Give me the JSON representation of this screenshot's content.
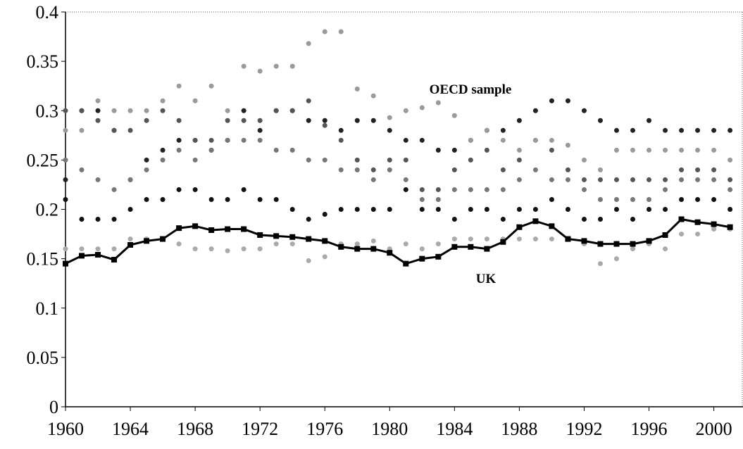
{
  "chart_data": {
    "type": "line",
    "x": [
      1960,
      1961,
      1962,
      1963,
      1964,
      1965,
      1966,
      1967,
      1968,
      1969,
      1970,
      1971,
      1972,
      1973,
      1974,
      1975,
      1976,
      1977,
      1978,
      1979,
      1980,
      1981,
      1982,
      1983,
      1984,
      1985,
      1986,
      1987,
      1988,
      1989,
      1990,
      1991,
      1992,
      1993,
      1994,
      1995,
      1996,
      1997,
      1998,
      1999,
      2000,
      2001
    ],
    "xlim": [
      1960,
      2001.8
    ],
    "xticks": [
      1960,
      1964,
      1968,
      1972,
      1976,
      1980,
      1984,
      1988,
      1992,
      1996,
      2000
    ],
    "ylim": [
      0,
      0.4
    ],
    "yticks": [
      0,
      0.05,
      0.1,
      0.15,
      0.2,
      0.25,
      0.3,
      0.35,
      0.4
    ],
    "annotations": [
      "OECD sample",
      "UK"
    ],
    "series": [
      {
        "marker": "point",
        "color": "#222222",
        "values": [
          0.23,
          0.3,
          0.3,
          0.28,
          0.23,
          0.25,
          0.26,
          0.27,
          0.27,
          0.26,
          0.27,
          0.3,
          0.28,
          0.3,
          0.3,
          0.29,
          0.29,
          0.28,
          0.29,
          0.29,
          0.28,
          0.27,
          0.27,
          0.26,
          0.26,
          0.27,
          0.28,
          0.28,
          0.29,
          0.3,
          0.31,
          0.31,
          0.3,
          0.29,
          0.28,
          0.28,
          0.29,
          0.28,
          0.28,
          0.28,
          0.28,
          0.28
        ]
      },
      {
        "marker": "point",
        "color": "#555555",
        "values": [
          0.3,
          0.3,
          0.29,
          0.28,
          0.28,
          0.29,
          0.3,
          0.29,
          0.27,
          0.27,
          0.29,
          0.29,
          0.29,
          0.3,
          0.3,
          0.31,
          0.285,
          0.27,
          0.25,
          0.24,
          0.25,
          0.25,
          0.22,
          0.22,
          0.24,
          0.25,
          0.26,
          0.24,
          0.25,
          0.27,
          0.26,
          0.24,
          0.23,
          0.23,
          0.23,
          0.23,
          0.23,
          0.23,
          0.24,
          0.24,
          0.24,
          0.23
        ]
      },
      {
        "marker": "point",
        "color": "#9a9a9a",
        "values": [
          0.28,
          0.28,
          0.31,
          0.3,
          0.3,
          0.3,
          0.31,
          0.325,
          0.31,
          0.325,
          0.3,
          0.345,
          0.34,
          0.345,
          0.345,
          0.368,
          0.38,
          0.38,
          0.322,
          0.315,
          0.293,
          0.3,
          0.303,
          0.308,
          0.295,
          0.27,
          0.28,
          0.27,
          0.26,
          0.27,
          0.27,
          0.265,
          0.25,
          0.24,
          0.26,
          0.26,
          0.26,
          0.26,
          0.26,
          0.26,
          0.26,
          0.25
        ]
      },
      {
        "marker": "point",
        "color": "#777777",
        "values": [
          0.25,
          0.24,
          0.23,
          0.22,
          0.23,
          0.24,
          0.25,
          0.26,
          0.25,
          0.26,
          0.27,
          0.27,
          0.27,
          0.26,
          0.26,
          0.25,
          0.25,
          0.24,
          0.24,
          0.23,
          0.24,
          0.23,
          0.21,
          0.21,
          0.22,
          0.22,
          0.22,
          0.22,
          0.23,
          0.24,
          0.23,
          0.23,
          0.22,
          0.21,
          0.21,
          0.21,
          0.21,
          0.22,
          0.23,
          0.23,
          0.23,
          0.22
        ]
      },
      {
        "marker": "point",
        "color": "#111111",
        "values": [
          0.21,
          0.19,
          0.19,
          0.19,
          0.2,
          0.21,
          0.21,
          0.22,
          0.22,
          0.21,
          0.21,
          0.22,
          0.21,
          0.21,
          0.2,
          0.19,
          0.195,
          0.2,
          0.2,
          0.2,
          0.2,
          0.22,
          0.2,
          0.2,
          0.19,
          0.2,
          0.2,
          0.19,
          0.2,
          0.2,
          0.21,
          0.2,
          0.19,
          0.19,
          0.2,
          0.19,
          0.2,
          0.2,
          0.21,
          0.21,
          0.21,
          0.2
        ]
      },
      {
        "marker": "point",
        "color": "#aaaaaa",
        "values": [
          0.16,
          0.16,
          0.16,
          0.16,
          0.17,
          0.17,
          0.17,
          0.165,
          0.16,
          0.16,
          0.158,
          0.16,
          0.16,
          0.165,
          0.165,
          0.148,
          0.152,
          0.165,
          0.165,
          0.168,
          0.16,
          0.165,
          0.16,
          0.165,
          0.17,
          0.17,
          0.17,
          0.17,
          0.17,
          0.17,
          0.17,
          0.17,
          0.165,
          0.145,
          0.15,
          0.16,
          0.165,
          0.16,
          0.175,
          0.175,
          0.18,
          0.18
        ]
      },
      {
        "marker": "line",
        "color": "#000000",
        "values": [
          0.145,
          0.153,
          0.154,
          0.149,
          0.164,
          0.168,
          0.17,
          0.181,
          0.183,
          0.179,
          0.18,
          0.18,
          0.174,
          0.173,
          0.172,
          0.17,
          0.168,
          0.162,
          0.16,
          0.16,
          0.156,
          0.145,
          0.15,
          0.152,
          0.162,
          0.162,
          0.16,
          0.167,
          0.182,
          0.188,
          0.183,
          0.17,
          0.168,
          0.165,
          0.165,
          0.165,
          0.168,
          0.174,
          0.19,
          0.187,
          0.185,
          0.182
        ]
      }
    ]
  }
}
